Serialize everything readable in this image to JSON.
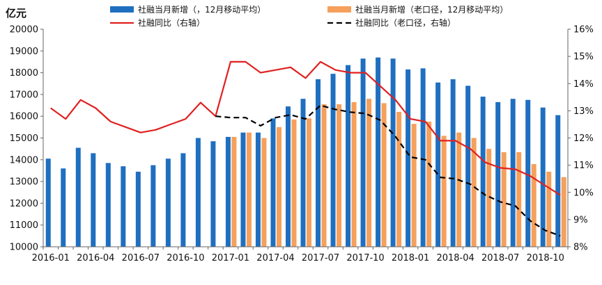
{
  "chart_data": {
    "type": "bar",
    "unit_left": "亿元",
    "x": [
      "2016-01",
      "2016-02",
      "2016-03",
      "2016-04",
      "2016-05",
      "2016-06",
      "2016-07",
      "2016-08",
      "2016-09",
      "2016-10",
      "2016-11",
      "2016-12",
      "2017-01",
      "2017-02",
      "2017-03",
      "2017-04",
      "2017-05",
      "2017-06",
      "2017-07",
      "2017-08",
      "2017-09",
      "2017-10",
      "2017-11",
      "2017-12",
      "2018-01",
      "2018-02",
      "2018-03",
      "2018-04",
      "2018-05",
      "2018-06",
      "2018-07",
      "2018-08",
      "2018-09",
      "2018-10",
      "2018-11"
    ],
    "x_tick_labels": [
      "2016-01",
      "2016-04",
      "2016-07",
      "2016-10",
      "2017-01",
      "2017-04",
      "2017-07",
      "2017-10",
      "2018-01",
      "2018-04",
      "2018-07",
      "2018-10"
    ],
    "x_tick_indices": [
      0,
      3,
      6,
      9,
      12,
      15,
      18,
      21,
      24,
      27,
      30,
      33
    ],
    "y_left": {
      "min": 10000,
      "max": 20000,
      "step": 1000,
      "tick_labels": [
        "10000",
        "11000",
        "12000",
        "13000",
        "14000",
        "15000",
        "16000",
        "17000",
        "18000",
        "19000",
        "20000"
      ]
    },
    "y_right": {
      "min": 8,
      "max": 16,
      "step": 1,
      "tick_labels": [
        "8%",
        "9%",
        "10%",
        "11%",
        "12%",
        "13%",
        "14%",
        "15%",
        "16%"
      ]
    },
    "series": [
      {
        "name": "社融当月新增（，12月移动平均）",
        "kind": "bar",
        "axis": "left",
        "color": "#1f6fc0",
        "values": [
          14050,
          13600,
          14550,
          14300,
          13850,
          13700,
          13450,
          13750,
          14050,
          14300,
          15000,
          14850,
          15050,
          15250,
          15250,
          15900,
          16450,
          16800,
          17700,
          17950,
          18350,
          18650,
          18700,
          18650,
          18150,
          18200,
          17550,
          17700,
          17400,
          16900,
          16650,
          16800,
          16750,
          16400,
          16050
        ]
      },
      {
        "name": "社融当月新增（老口径，12月移动平均）",
        "kind": "bar",
        "axis": "left",
        "color": "#f5a05c",
        "values": [
          null,
          null,
          null,
          null,
          null,
          null,
          null,
          null,
          null,
          null,
          null,
          null,
          15050,
          15250,
          15000,
          15500,
          15850,
          15900,
          16550,
          16550,
          16650,
          16800,
          16600,
          16200,
          15650,
          15750,
          15100,
          15250,
          15000,
          14500,
          14350,
          14350,
          13800,
          13450,
          13200
        ]
      },
      {
        "name": "社融同比（右轴）",
        "kind": "line",
        "axis": "right",
        "color": "#e02020",
        "dash": "solid",
        "values": [
          13.1,
          12.7,
          13.4,
          13.1,
          12.6,
          12.4,
          12.2,
          12.3,
          12.5,
          12.7,
          13.3,
          12.8,
          14.8,
          14.8,
          14.4,
          14.5,
          14.6,
          14.2,
          14.8,
          14.5,
          14.4,
          14.4,
          13.9,
          13.4,
          12.7,
          12.6,
          11.9,
          11.9,
          11.6,
          11.1,
          10.9,
          10.85,
          10.6,
          10.25,
          9.9
        ]
      },
      {
        "name": "社融同比（老口径，右轴）",
        "kind": "line",
        "axis": "right",
        "color": "#000000",
        "dash": "dashed",
        "values": [
          null,
          null,
          null,
          null,
          null,
          null,
          null,
          null,
          null,
          null,
          null,
          12.8,
          12.75,
          12.75,
          12.45,
          12.75,
          12.85,
          12.7,
          13.2,
          13.05,
          12.95,
          12.9,
          12.65,
          12.05,
          11.3,
          11.2,
          10.55,
          10.5,
          10.3,
          9.9,
          9.65,
          9.5,
          8.95,
          8.6,
          8.4
        ]
      }
    ],
    "legend_placement": "top",
    "grid": false
  }
}
